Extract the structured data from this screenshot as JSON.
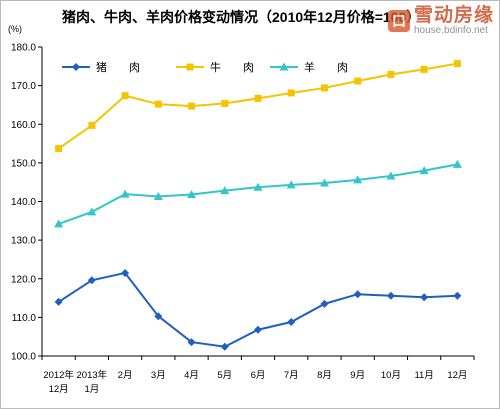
{
  "chart_data": {
    "type": "line",
    "title": "猪肉、牛肉、羊肉价格变动情况（2010年12月价格=100）",
    "unit_label": "(%)",
    "ylim": [
      100,
      180
    ],
    "yticks": [
      "100.0",
      "110.0",
      "120.0",
      "130.0",
      "140.0",
      "150.0",
      "160.0",
      "170.0",
      "180.0"
    ],
    "grid": false,
    "legend_position": "top",
    "categories": [
      [
        "2012年",
        "12月"
      ],
      [
        "2013年",
        "1月"
      ],
      [
        "2月"
      ],
      [
        "3月"
      ],
      [
        "4月"
      ],
      [
        "5月"
      ],
      [
        "6月"
      ],
      [
        "7月"
      ],
      [
        "8月"
      ],
      [
        "9月"
      ],
      [
        "10月"
      ],
      [
        "11月"
      ],
      [
        "12月"
      ]
    ],
    "series": [
      {
        "name": "猪　　肉",
        "color": "#1f5fc1",
        "marker": "diamond",
        "values": [
          114.0,
          119.6,
          121.5,
          110.3,
          103.6,
          102.4,
          106.8,
          108.8,
          113.5,
          116.0,
          115.6,
          115.2,
          115.6
        ]
      },
      {
        "name": "牛　　肉",
        "color": "#f5c400",
        "marker": "square",
        "values": [
          153.7,
          159.7,
          167.4,
          165.2,
          164.7,
          165.4,
          166.7,
          168.1,
          169.4,
          171.2,
          172.9,
          174.2,
          175.7
        ]
      },
      {
        "name": "羊　　肉",
        "color": "#33c5c9",
        "marker": "triangle",
        "values": [
          134.2,
          137.3,
          141.9,
          141.3,
          141.8,
          142.8,
          143.7,
          144.3,
          144.8,
          145.6,
          146.6,
          148.0,
          149.6
        ]
      }
    ]
  },
  "watermark": {
    "icon_char": "口",
    "brand": "雪动房缘",
    "url": "house.bdinfo.net"
  }
}
